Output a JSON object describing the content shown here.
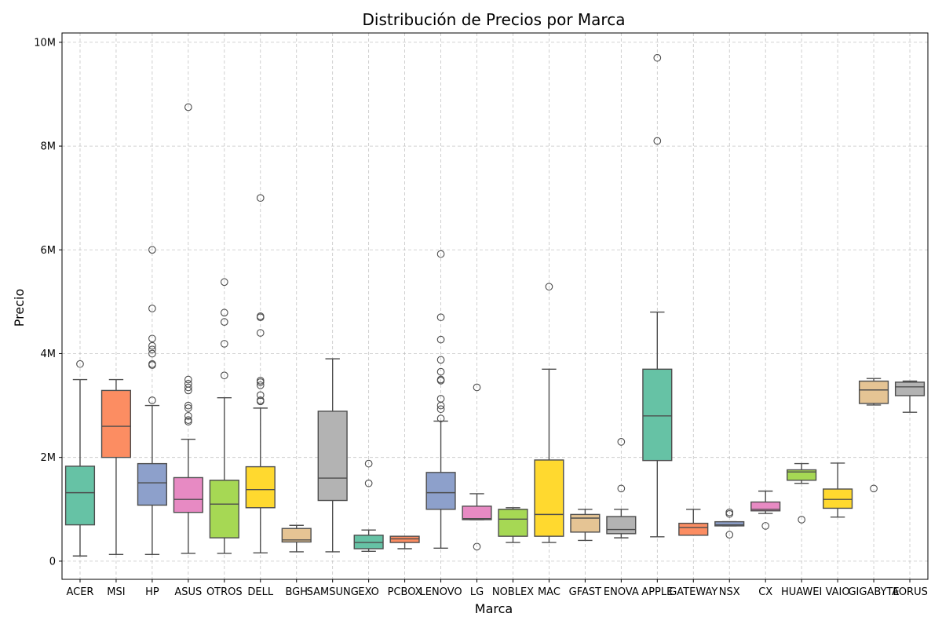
{
  "chart_data": {
    "type": "boxplot",
    "title": "Distribución de Precios por Marca",
    "xlabel": "Marca",
    "ylabel": "Precio",
    "ylim": [
      -350000,
      10180000
    ],
    "y_ticks": [
      0,
      2000000,
      4000000,
      6000000,
      8000000,
      10000000
    ],
    "y_tick_labels": [
      "0",
      "2M",
      "4M",
      "6M",
      "8M",
      "10M"
    ],
    "grid": true,
    "palette": [
      "#66c2a5",
      "#fc8d62",
      "#8da0cb",
      "#e78ac3",
      "#a6d854",
      "#ffd92f",
      "#e5c494",
      "#b3b3b3"
    ],
    "categories": [
      "ACER",
      "MSI",
      "HP",
      "ASUS",
      "OTROS",
      "DELL",
      "BGH",
      "SAMSUNG",
      "EXO",
      "PCBOX",
      "LENOVO",
      "LG",
      "NOBLEX",
      "MAC",
      "GFAST",
      "ENOVA",
      "APPLE",
      "GATEWAY",
      "NSX",
      "CX",
      "HUAWEI",
      "VAIO",
      "GIGABYTE",
      "AORUS"
    ],
    "boxes": [
      {
        "whislo": 100000,
        "q1": 700000,
        "med": 1320000,
        "q3": 1830000,
        "whishi": 3500000,
        "fliers": [
          3800000
        ]
      },
      {
        "whislo": 130000,
        "q1": 2000000,
        "med": 2600000,
        "q3": 3290000,
        "whishi": 3500000,
        "fliers": []
      },
      {
        "whislo": 130000,
        "q1": 1080000,
        "med": 1510000,
        "q3": 1880000,
        "whishi": 3000000,
        "fliers": [
          3100000,
          3780000,
          3800000,
          4000000,
          4080000,
          4150000,
          4290000,
          4870000,
          6000000
        ]
      },
      {
        "whislo": 150000,
        "q1": 940000,
        "med": 1190000,
        "q3": 1610000,
        "whishi": 2350000,
        "fliers": [
          2690000,
          2720000,
          2800000,
          2950000,
          3000000,
          3290000,
          3350000,
          3420000,
          3500000,
          8750000
        ]
      },
      {
        "whislo": 150000,
        "q1": 450000,
        "med": 1100000,
        "q3": 1560000,
        "whishi": 3150000,
        "fliers": [
          3580000,
          4190000,
          4610000,
          4790000,
          5380000
        ]
      },
      {
        "whislo": 160000,
        "q1": 1030000,
        "med": 1380000,
        "q3": 1820000,
        "whishi": 2950000,
        "fliers": [
          3080000,
          3100000,
          3200000,
          3390000,
          3450000,
          3480000,
          4400000,
          4700000,
          4720000,
          7000000
        ]
      },
      {
        "whislo": 180000,
        "q1": 370000,
        "med": 410000,
        "q3": 630000,
        "whishi": 690000,
        "fliers": []
      },
      {
        "whislo": 180000,
        "q1": 1170000,
        "med": 1600000,
        "q3": 2890000,
        "whishi": 3900000,
        "fliers": []
      },
      {
        "whislo": 190000,
        "q1": 240000,
        "med": 360000,
        "q3": 500000,
        "whishi": 600000,
        "fliers": [
          1500000,
          1880000
        ]
      },
      {
        "whislo": 240000,
        "q1": 360000,
        "med": 430000,
        "q3": 480000,
        "whishi": 480000,
        "fliers": []
      },
      {
        "whislo": 250000,
        "q1": 1000000,
        "med": 1320000,
        "q3": 1710000,
        "whishi": 2700000,
        "fliers": [
          2750000,
          2930000,
          3000000,
          3130000,
          3480000,
          3500000,
          3650000,
          3880000,
          4270000,
          4700000,
          5920000
        ]
      },
      {
        "whislo": 800000,
        "q1": 800000,
        "med": 820000,
        "q3": 1060000,
        "whishi": 1300000,
        "fliers": [
          280000,
          3350000
        ]
      },
      {
        "whislo": 360000,
        "q1": 480000,
        "med": 810000,
        "q3": 1000000,
        "whishi": 1030000,
        "fliers": []
      },
      {
        "whislo": 360000,
        "q1": 480000,
        "med": 900000,
        "q3": 1950000,
        "whishi": 3700000,
        "fliers": [
          5290000
        ]
      },
      {
        "whislo": 400000,
        "q1": 560000,
        "med": 830000,
        "q3": 900000,
        "whishi": 1000000,
        "fliers": []
      },
      {
        "whislo": 450000,
        "q1": 530000,
        "med": 610000,
        "q3": 860000,
        "whishi": 1000000,
        "fliers": [
          1400000,
          2300000
        ]
      },
      {
        "whislo": 470000,
        "q1": 1940000,
        "med": 2800000,
        "q3": 3700000,
        "whishi": 4800000,
        "fliers": [
          8100000,
          9700000
        ]
      },
      {
        "whislo": 500000,
        "q1": 500000,
        "med": 650000,
        "q3": 730000,
        "whishi": 1000000,
        "fliers": []
      },
      {
        "whislo": 680000,
        "q1": 680000,
        "med": 700000,
        "q3": 760000,
        "whishi": 760000,
        "fliers": [
          510000,
          910000,
          940000
        ]
      },
      {
        "whislo": 920000,
        "q1": 970000,
        "med": 1000000,
        "q3": 1140000,
        "whishi": 1350000,
        "fliers": [
          680000
        ]
      },
      {
        "whislo": 1500000,
        "q1": 1560000,
        "med": 1720000,
        "q3": 1760000,
        "whishi": 1880000,
        "fliers": [
          800000
        ]
      },
      {
        "whislo": 850000,
        "q1": 1020000,
        "med": 1190000,
        "q3": 1390000,
        "whishi": 1890000,
        "fliers": []
      },
      {
        "whislo": 3010000,
        "q1": 3040000,
        "med": 3300000,
        "q3": 3470000,
        "whishi": 3520000,
        "fliers": [
          1400000
        ]
      },
      {
        "whislo": 2870000,
        "q1": 3190000,
        "med": 3360000,
        "q3": 3450000,
        "whishi": 3470000,
        "fliers": []
      }
    ]
  }
}
